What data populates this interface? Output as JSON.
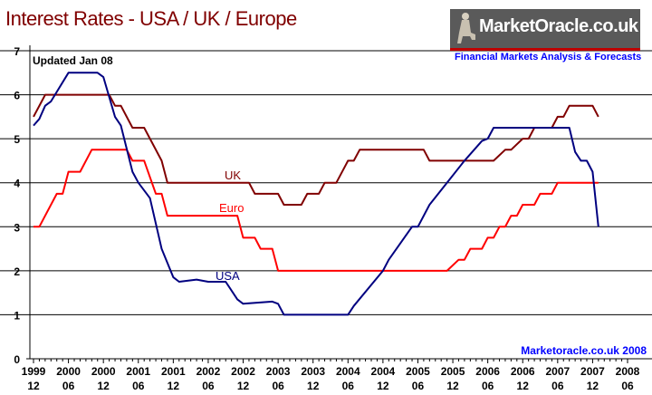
{
  "chart_data": {
    "type": "line",
    "title": "Interest Rates - USA / UK / Europe",
    "annotation": "Updated Jan 08",
    "credit": "Marketoracle.co.uk 2008",
    "logo_text": "MarketOracle.co.uk",
    "logo_tagline": "Financial Markets Analysis & Forecasts",
    "xlim": [
      "1999-12",
      "2008-06"
    ],
    "ylim": [
      0,
      7
    ],
    "yticks": [
      "0",
      "1",
      "2",
      "3",
      "4",
      "5",
      "6",
      "7"
    ],
    "xticks": [
      [
        "1999",
        "12"
      ],
      [
        "2000",
        "06"
      ],
      [
        "2000",
        "12"
      ],
      [
        "2001",
        "06"
      ],
      [
        "2001",
        "12"
      ],
      [
        "2002",
        "06"
      ],
      [
        "2002",
        "12"
      ],
      [
        "2003",
        "06"
      ],
      [
        "2003",
        "12"
      ],
      [
        "2004",
        "06"
      ],
      [
        "2004",
        "12"
      ],
      [
        "2005",
        "06"
      ],
      [
        "2005",
        "12"
      ],
      [
        "2006",
        "06"
      ],
      [
        "2006",
        "12"
      ],
      [
        "2007",
        "06"
      ],
      [
        "2007",
        "12"
      ],
      [
        "2008",
        "06"
      ]
    ],
    "grid": true,
    "series": [
      {
        "name": "UK",
        "color": "#800000",
        "points": [
          [
            "1999-12",
            5.5
          ],
          [
            "2000-02",
            6.0
          ],
          [
            "2001-01",
            6.0
          ],
          [
            "2001-02",
            5.75
          ],
          [
            "2001-03",
            5.75
          ],
          [
            "2001-05",
            5.25
          ],
          [
            "2001-07",
            5.25
          ],
          [
            "2001-10",
            4.5
          ],
          [
            "2001-11",
            4.0
          ],
          [
            "2003-01",
            4.0
          ],
          [
            "2003-02",
            3.75
          ],
          [
            "2003-06",
            3.75
          ],
          [
            "2003-07",
            3.5
          ],
          [
            "2003-10",
            3.5
          ],
          [
            "2003-11",
            3.75
          ],
          [
            "2004-01",
            3.75
          ],
          [
            "2004-02",
            4.0
          ],
          [
            "2004-04",
            4.0
          ],
          [
            "2004-06",
            4.5
          ],
          [
            "2004-07",
            4.5
          ],
          [
            "2004-08",
            4.75
          ],
          [
            "2005-07",
            4.75
          ],
          [
            "2005-08",
            4.5
          ],
          [
            "2006-07",
            4.5
          ],
          [
            "2006-09",
            4.75
          ],
          [
            "2006-10",
            4.75
          ],
          [
            "2006-12",
            5.0
          ],
          [
            "2007-01",
            5.0
          ],
          [
            "2007-02",
            5.25
          ],
          [
            "2007-05",
            5.25
          ],
          [
            "2007-06",
            5.5
          ],
          [
            "2007-07",
            5.5
          ],
          [
            "2007-08",
            5.75
          ],
          [
            "2007-12",
            5.75
          ],
          [
            "2008-01",
            5.5
          ],
          [
            "2008-01",
            5.5
          ]
        ]
      },
      {
        "name": "Euro",
        "color": "#ff0000",
        "points": [
          [
            "1999-12",
            3.0
          ],
          [
            "2000-01",
            3.0
          ],
          [
            "2000-04",
            3.75
          ],
          [
            "2000-05",
            3.75
          ],
          [
            "2000-06",
            4.25
          ],
          [
            "2000-08",
            4.25
          ],
          [
            "2000-10",
            4.75
          ],
          [
            "2001-04",
            4.75
          ],
          [
            "2001-05",
            4.5
          ],
          [
            "2001-07",
            4.5
          ],
          [
            "2001-09",
            3.75
          ],
          [
            "2001-10",
            3.75
          ],
          [
            "2001-11",
            3.25
          ],
          [
            "2002-11",
            3.25
          ],
          [
            "2002-12",
            2.75
          ],
          [
            "2003-02",
            2.75
          ],
          [
            "2003-03",
            2.5
          ],
          [
            "2003-05",
            2.5
          ],
          [
            "2003-06",
            2.0
          ],
          [
            "2005-11",
            2.0
          ],
          [
            "2006-01",
            2.25
          ],
          [
            "2006-02",
            2.25
          ],
          [
            "2006-03",
            2.5
          ],
          [
            "2006-05",
            2.5
          ],
          [
            "2006-06",
            2.75
          ],
          [
            "2006-07",
            2.75
          ],
          [
            "2006-08",
            3.0
          ],
          [
            "2006-09",
            3.0
          ],
          [
            "2006-10",
            3.25
          ],
          [
            "2006-11",
            3.25
          ],
          [
            "2006-12",
            3.5
          ],
          [
            "2007-02",
            3.5
          ],
          [
            "2007-03",
            3.75
          ],
          [
            "2007-05",
            3.75
          ],
          [
            "2007-06",
            4.0
          ],
          [
            "2008-01",
            4.0
          ]
        ]
      },
      {
        "name": "USA",
        "color": "#000080",
        "points": [
          [
            "1999-12",
            5.3
          ],
          [
            "2000-01",
            5.45
          ],
          [
            "2000-02",
            5.75
          ],
          [
            "2000-03",
            5.85
          ],
          [
            "2000-06",
            6.5
          ],
          [
            "2000-11",
            6.5
          ],
          [
            "2000-12",
            6.4
          ],
          [
            "2001-02",
            5.5
          ],
          [
            "2001-03",
            5.3
          ],
          [
            "2001-05",
            4.25
          ],
          [
            "2001-06",
            4.0
          ],
          [
            "2001-08",
            3.65
          ],
          [
            "2001-10",
            2.5
          ],
          [
            "2001-12",
            1.85
          ],
          [
            "2002-01",
            1.75
          ],
          [
            "2002-04",
            1.8
          ],
          [
            "2002-06",
            1.75
          ],
          [
            "2002-09",
            1.75
          ],
          [
            "2002-11",
            1.35
          ],
          [
            "2002-12",
            1.25
          ],
          [
            "2003-05",
            1.3
          ],
          [
            "2003-06",
            1.25
          ],
          [
            "2003-07",
            1.0
          ],
          [
            "2004-06",
            1.0
          ],
          [
            "2004-07",
            1.2
          ],
          [
            "2004-12",
            2.0
          ],
          [
            "2005-01",
            2.25
          ],
          [
            "2005-05",
            3.0
          ],
          [
            "2005-06",
            3.0
          ],
          [
            "2005-08",
            3.5
          ],
          [
            "2005-11",
            4.0
          ],
          [
            "2006-02",
            4.5
          ],
          [
            "2006-05",
            4.95
          ],
          [
            "2006-06",
            5.0
          ],
          [
            "2006-07",
            5.25
          ],
          [
            "2007-08",
            5.25
          ],
          [
            "2007-09",
            4.7
          ],
          [
            "2007-10",
            4.5
          ],
          [
            "2007-11",
            4.5
          ],
          [
            "2007-12",
            4.25
          ],
          [
            "2008-01",
            3.0
          ]
        ]
      }
    ]
  }
}
